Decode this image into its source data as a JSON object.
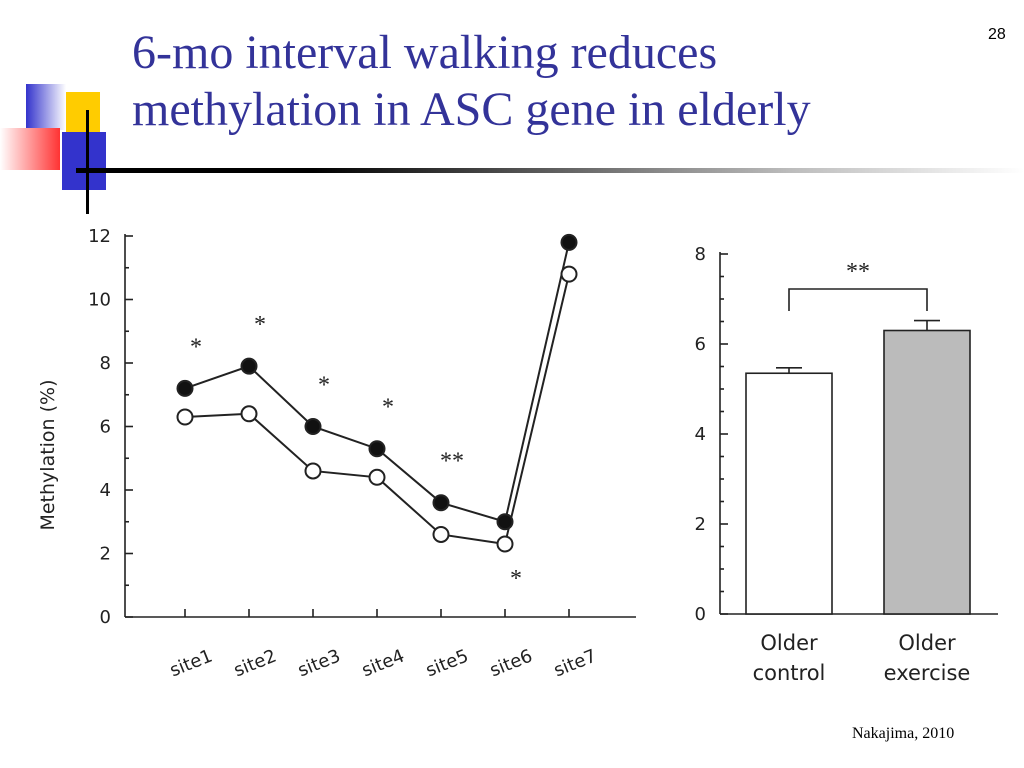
{
  "slide": {
    "number": "28",
    "title_line1": "6-mo interval walking reduces",
    "title_line2": "methylation in ASC gene in elderly",
    "citation": "Nakajima, 2010",
    "title_color": "#333399",
    "deco_colors": {
      "blue": "#3333cc",
      "yellow": "#ffcc00",
      "red": "#ff3333"
    }
  },
  "chart_data": [
    {
      "type": "line",
      "ylabel": "Methylation (%)",
      "ylim": [
        0,
        12
      ],
      "yticks": [
        0,
        2,
        4,
        6,
        8,
        10,
        12
      ],
      "categories": [
        "site1",
        "site2",
        "site3",
        "site4",
        "site5",
        "site6",
        "site7"
      ],
      "series": [
        {
          "marker": "filled",
          "values": [
            7.2,
            7.9,
            6.0,
            5.3,
            3.6,
            3.0,
            11.8
          ]
        },
        {
          "marker": "open",
          "values": [
            6.3,
            6.4,
            4.6,
            4.4,
            2.6,
            2.3,
            10.8
          ]
        }
      ],
      "significance": [
        "*",
        "*",
        "*",
        "*",
        "**",
        "*",
        ""
      ],
      "grid": false
    },
    {
      "type": "bar",
      "categories": [
        "Older\ncontrol",
        "Older\nexercise"
      ],
      "category_lines": [
        [
          "Older",
          "control"
        ],
        [
          "Older",
          "exercise"
        ]
      ],
      "values": [
        5.35,
        6.3
      ],
      "errors": [
        0.12,
        0.22
      ],
      "bar_fills": [
        "#ffffff",
        "#bbbbbb"
      ],
      "ylim": [
        0,
        8
      ],
      "yticks": [
        0,
        2,
        4,
        6,
        8
      ],
      "comparison_label": "**",
      "grid": false
    }
  ]
}
